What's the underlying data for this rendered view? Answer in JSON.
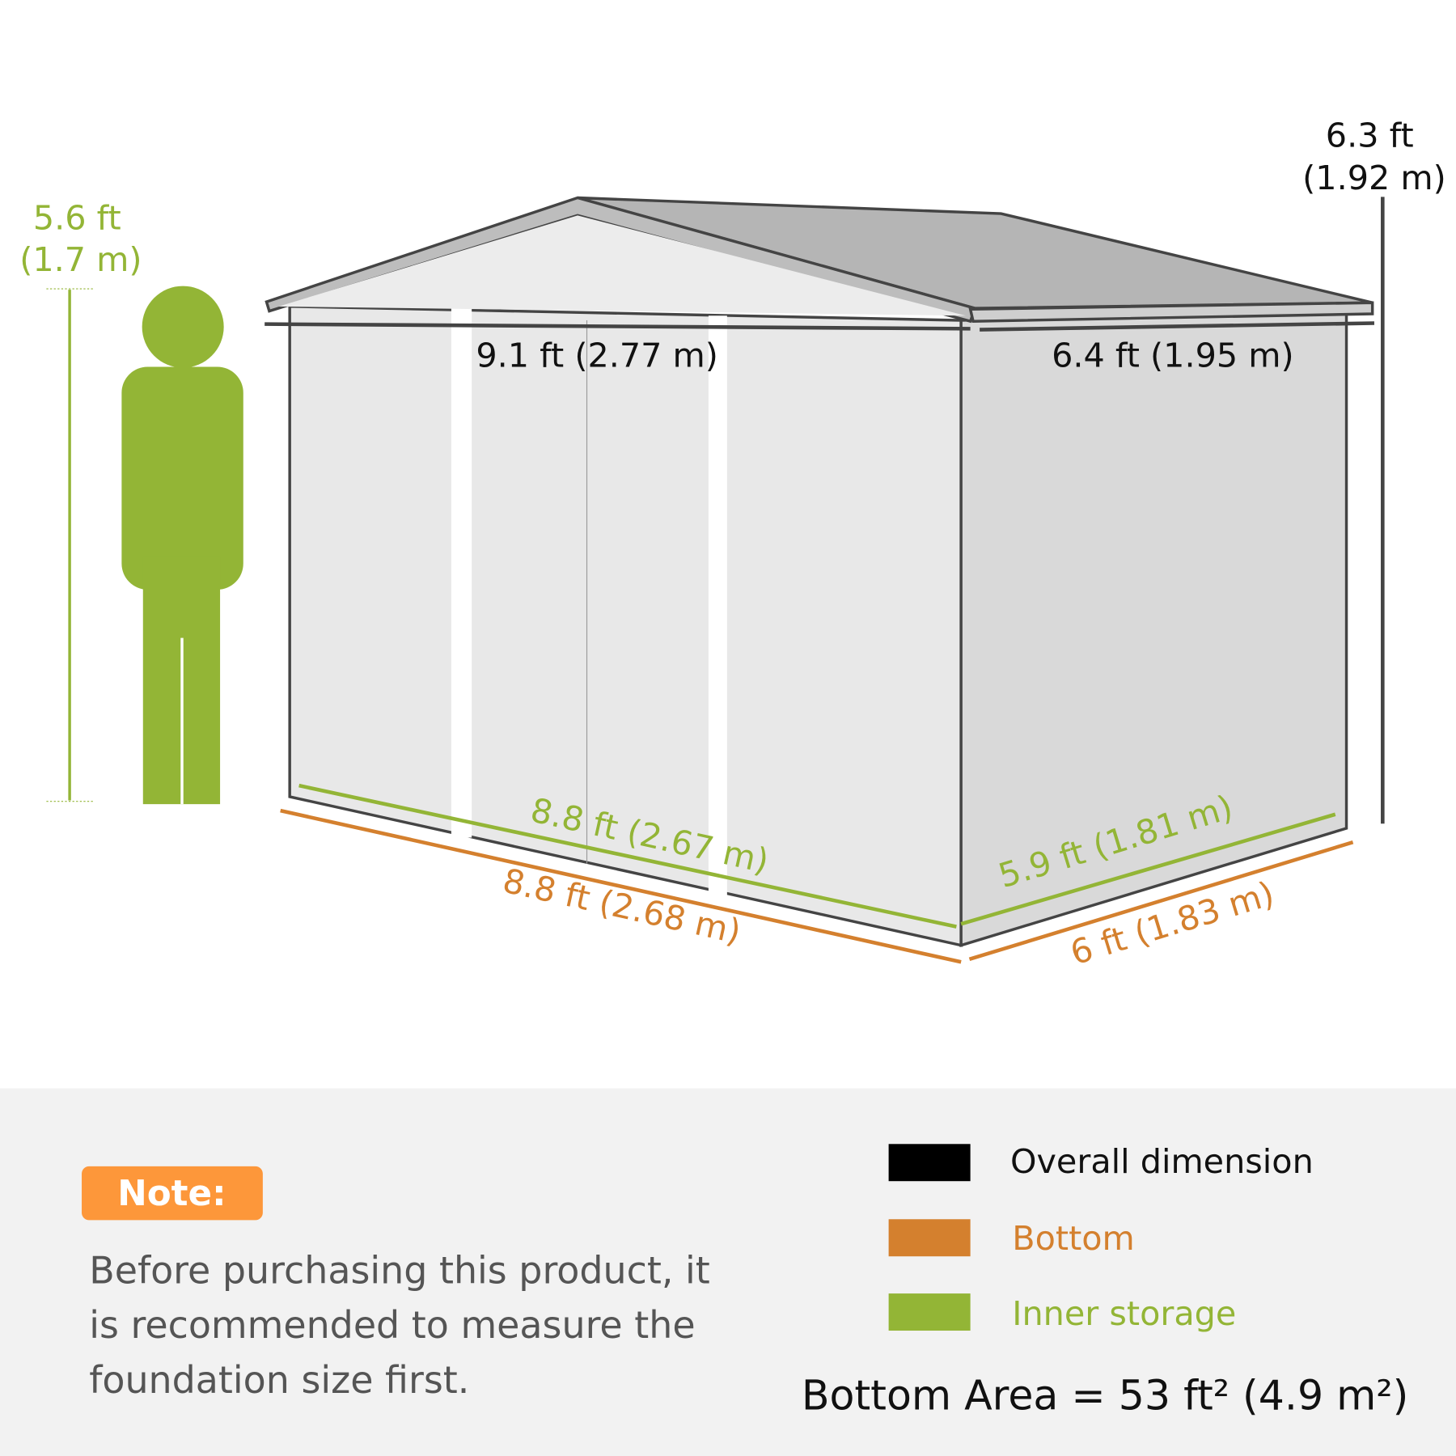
{
  "colors": {
    "overall": "#000000",
    "bottom": "#d4802e",
    "inner": "#93b536",
    "note_bg": "#fd973a",
    "panel_bg": "#f2f2f2",
    "text_gray": "#555555"
  },
  "dimensions": {
    "height_total": [
      "6.3 ft",
      "(1.92 m)"
    ],
    "person_height": [
      "5.6 ft",
      "(1.7 m)"
    ],
    "top_width": "9.1 ft (2.77 m)",
    "top_depth": "6.4 ft (1.95 m)",
    "inner_width": "8.8 ft (2.67 m)",
    "inner_depth": "5.9 ft (1.81 m)",
    "bottom_width": "8.8 ft (2.68 m)",
    "bottom_depth": "6 ft (1.83 m)"
  },
  "note": {
    "label": "Note:",
    "lines": [
      "Before purchasing this product, it",
      "is recommended to measure the",
      "foundation size first."
    ]
  },
  "legend": [
    {
      "label": "Overall dimension",
      "color": "#000000"
    },
    {
      "label": "Bottom",
      "color": "#d4802e"
    },
    {
      "label": "Inner storage",
      "color": "#93b536"
    }
  ],
  "bottom_area": "Bottom Area = 53 ft² (4.9 m²)"
}
